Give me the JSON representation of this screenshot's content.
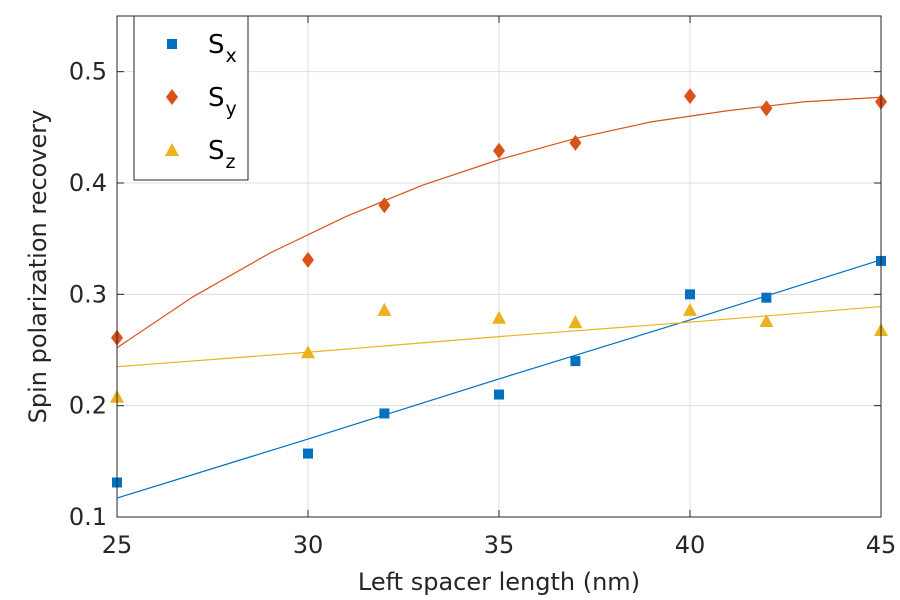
{
  "chart_data": {
    "type": "scatter",
    "xlabel": "Left spacer length (nm)",
    "ylabel": "Spin polarization recovery",
    "xlim": [
      25,
      45
    ],
    "ylim": [
      0.1,
      0.55
    ],
    "xticks": [
      "25",
      "30",
      "35",
      "40",
      "45"
    ],
    "yticks": [
      "0.1",
      "0.2",
      "0.3",
      "0.4",
      "0.5"
    ],
    "grid": true,
    "legend_position": "top-left",
    "series": [
      {
        "name": "S",
        "subscript": "x",
        "marker": "square",
        "color": "#0072BD",
        "points": [
          [
            25,
            0.131
          ],
          [
            30,
            0.157
          ],
          [
            32,
            0.193
          ],
          [
            35,
            0.21
          ],
          [
            37,
            0.24
          ],
          [
            40,
            0.3
          ],
          [
            42,
            0.297
          ],
          [
            45,
            0.33
          ]
        ],
        "fit": [
          [
            25,
            0.117
          ],
          [
            30,
            0.17
          ],
          [
            35,
            0.224
          ],
          [
            40,
            0.277
          ],
          [
            45,
            0.331
          ]
        ]
      },
      {
        "name": "S",
        "subscript": "y",
        "marker": "diamond",
        "color": "#D95319",
        "points": [
          [
            25,
            0.261
          ],
          [
            30,
            0.331
          ],
          [
            32,
            0.38
          ],
          [
            35,
            0.429
          ],
          [
            37,
            0.436
          ],
          [
            40,
            0.478
          ],
          [
            42,
            0.467
          ],
          [
            45,
            0.473
          ]
        ],
        "fit": [
          [
            25,
            0.252
          ],
          [
            27,
            0.298
          ],
          [
            29,
            0.337
          ],
          [
            31,
            0.37
          ],
          [
            33,
            0.398
          ],
          [
            35,
            0.421
          ],
          [
            37,
            0.44
          ],
          [
            39,
            0.455
          ],
          [
            41,
            0.465
          ],
          [
            43,
            0.473
          ],
          [
            45,
            0.477
          ]
        ]
      },
      {
        "name": "S",
        "subscript": "z",
        "marker": "triangle",
        "color": "#EDB120",
        "points": [
          [
            25,
            0.208
          ],
          [
            30,
            0.248
          ],
          [
            32,
            0.286
          ],
          [
            35,
            0.279
          ],
          [
            37,
            0.275
          ],
          [
            40,
            0.286
          ],
          [
            42,
            0.276
          ],
          [
            45,
            0.268
          ]
        ],
        "fit": [
          [
            25,
            0.235
          ],
          [
            30,
            0.248
          ],
          [
            35,
            0.262
          ],
          [
            40,
            0.275
          ],
          [
            45,
            0.289
          ]
        ]
      }
    ]
  }
}
